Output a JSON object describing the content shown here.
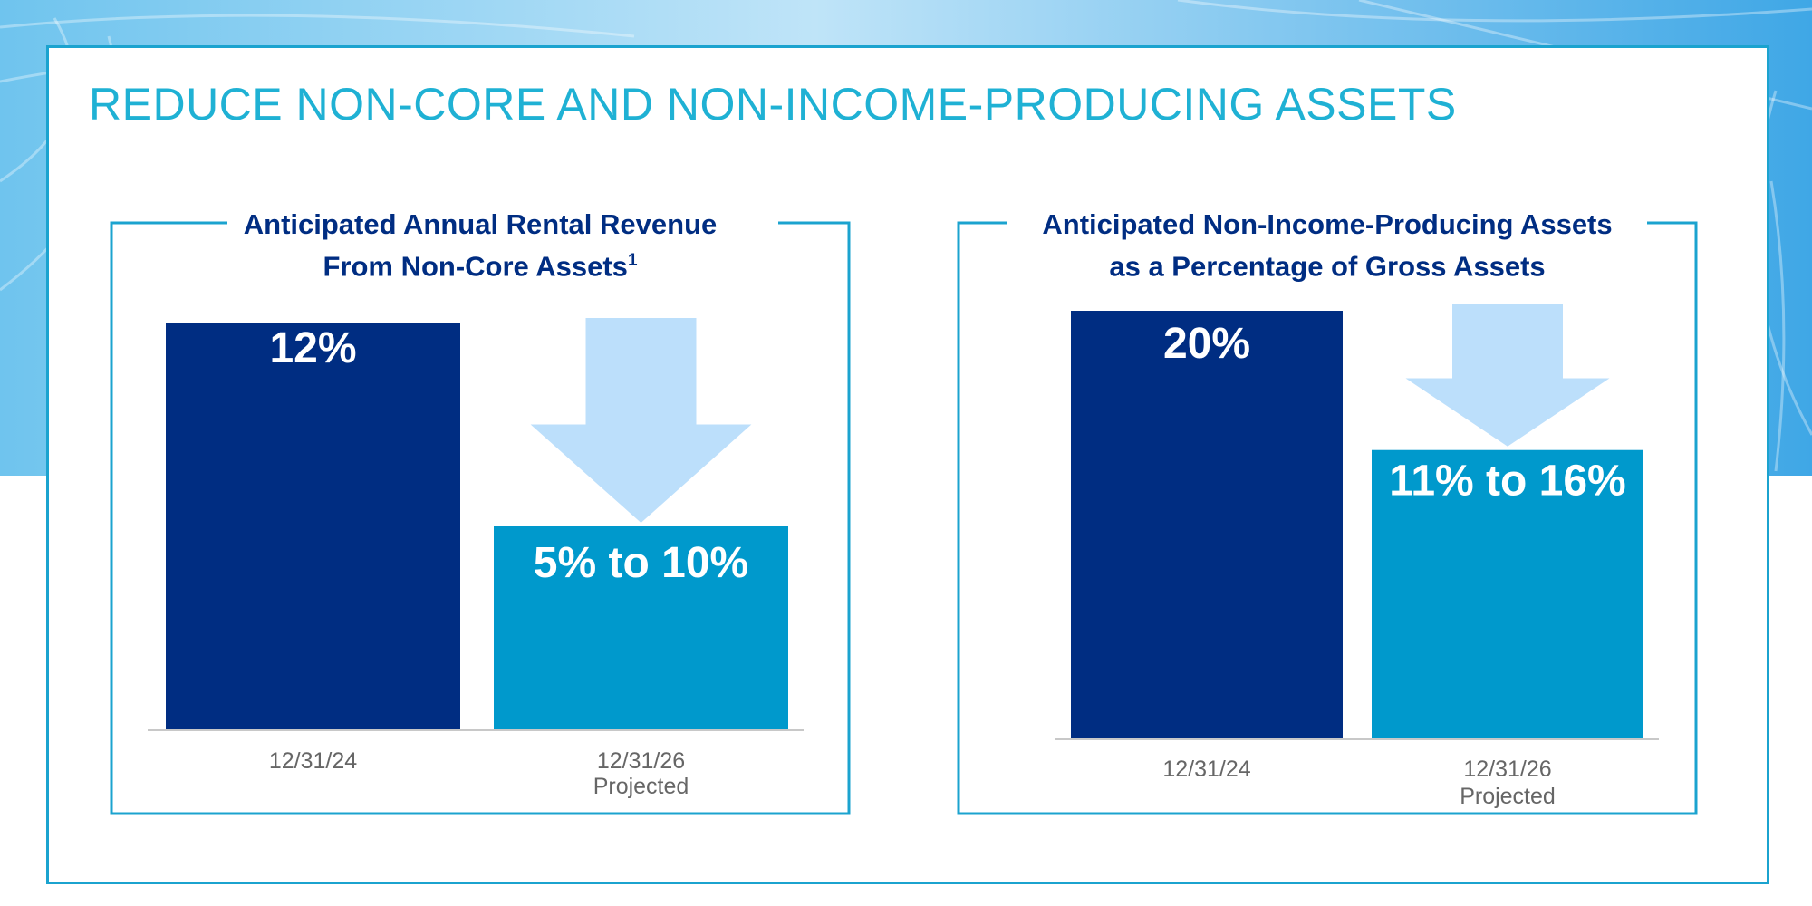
{
  "title": "REDUCE NON-CORE AND NON-INCOME-PRODUCING ASSETS",
  "colors": {
    "accent": "#1fb1d4",
    "frame": "#1ba3cf",
    "dark_bar": "#002d82",
    "light_bar": "#0099cc",
    "arrow": "#bcdffb",
    "title_text": "#002d82",
    "tick_text": "#666666"
  },
  "chart_data": [
    {
      "type": "bar",
      "title_line1": "Anticipated Annual Rental Revenue",
      "title_line2": "From Non-Core Assets",
      "title_footnote": "1",
      "unit": "%",
      "categories": [
        {
          "line1": "12/31/24",
          "line2": ""
        },
        {
          "line1": "12/31/26",
          "line2": "Projected"
        }
      ],
      "values": [
        12,
        6
      ],
      "value_labels": [
        "12%",
        "5% to 10%"
      ],
      "annotation": "downward arrow from 12/31/24 level to projected level",
      "ylim": [
        0,
        12
      ]
    },
    {
      "type": "bar",
      "title_line1": "Anticipated Non-Income-Producing Assets",
      "title_line2": "as a Percentage of Gross Assets",
      "title_footnote": "",
      "unit": "%",
      "categories": [
        {
          "line1": "12/31/24",
          "line2": ""
        },
        {
          "line1": "12/31/26",
          "line2": "Projected"
        }
      ],
      "values": [
        20,
        13.5
      ],
      "value_labels": [
        "20%",
        "11% to 16%"
      ],
      "annotation": "downward arrow from 12/31/24 level to projected level",
      "ylim": [
        0,
        20
      ]
    }
  ]
}
